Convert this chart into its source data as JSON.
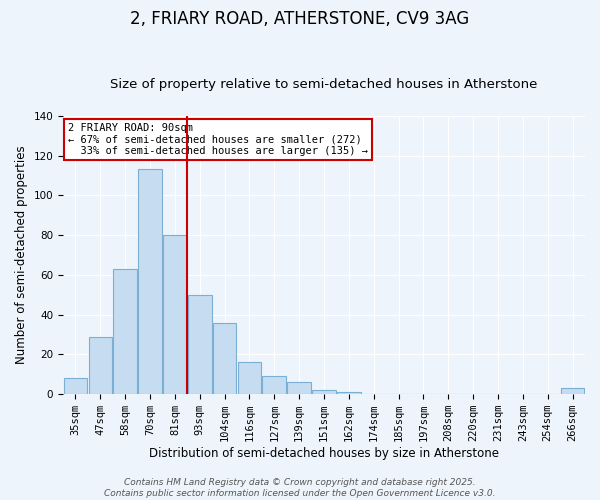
{
  "title": "2, FRIARY ROAD, ATHERSTONE, CV9 3AG",
  "subtitle": "Size of property relative to semi-detached houses in Atherstone",
  "xlabel": "Distribution of semi-detached houses by size in Atherstone",
  "ylabel": "Number of semi-detached properties",
  "categories": [
    "35sqm",
    "47sqm",
    "58sqm",
    "70sqm",
    "81sqm",
    "93sqm",
    "104sqm",
    "116sqm",
    "127sqm",
    "139sqm",
    "151sqm",
    "162sqm",
    "174sqm",
    "185sqm",
    "197sqm",
    "208sqm",
    "220sqm",
    "231sqm",
    "243sqm",
    "254sqm",
    "266sqm"
  ],
  "bar_heights": [
    8,
    29,
    63,
    113,
    80,
    50,
    36,
    16,
    9,
    6,
    2,
    1,
    0,
    0,
    0,
    0,
    0,
    0,
    0,
    0,
    3
  ],
  "bar_color": "#c6dcf0",
  "bar_edge_color": "#7bafd4",
  "vline_color": "#cc0000",
  "annotation_title": "2 FRIARY ROAD: 90sqm",
  "annotation_line1": "← 67% of semi-detached houses are smaller (272)",
  "annotation_line2": "  33% of semi-detached houses are larger (135) →",
  "annotation_box_edge": "#cc0000",
  "ylim": [
    0,
    140
  ],
  "yticks": [
    0,
    20,
    40,
    60,
    80,
    100,
    120,
    140
  ],
  "footer_line1": "Contains HM Land Registry data © Crown copyright and database right 2025.",
  "footer_line2": "Contains public sector information licensed under the Open Government Licence v3.0.",
  "background_color": "#eef4fb",
  "plot_background_color": "#eef4fb",
  "title_fontsize": 12,
  "subtitle_fontsize": 9.5,
  "axis_label_fontsize": 8.5,
  "tick_fontsize": 7.5,
  "footer_fontsize": 6.5
}
